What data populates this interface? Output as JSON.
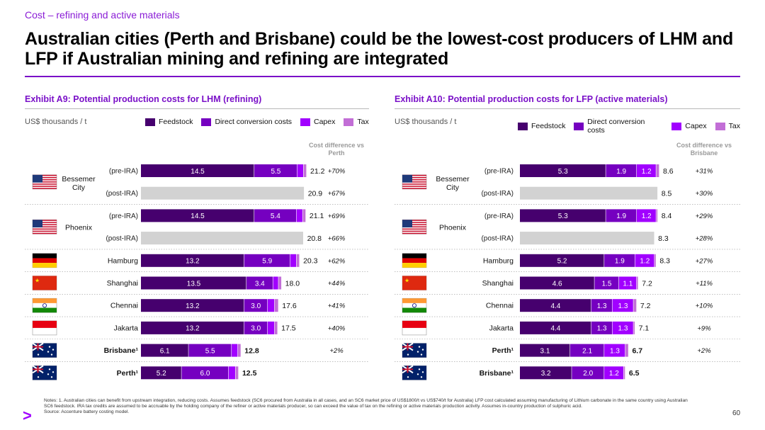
{
  "kicker": "Cost – refining and active materials",
  "title": "Australian cities (Perth and Brisbane) could be the lowest-cost producers of LHM and LFP if Australian mining and refining are integrated",
  "colors": {
    "feedstock": "#46006e",
    "direct_conversion": "#7500c0",
    "capex": "#a100ff",
    "tax": "#c26ed6",
    "post_ira": "#d2d2d2",
    "accent": "#7a10c8"
  },
  "notes": "Notes: 1. Australian cities can benefit from upstream integration, reducing costs. Assumes feedstock (SC6 procured from Australia in all cases, and an SC6 market price of US$1800/t vs US$740/t for Australia) LFP cost calculated assuming manufacturing of Lithium carbonate in the same country using Australian SC6 feedstock. IRA tax credits are assumed to be accruable by the holding company of the refiner or active materials producer, so can exceed the value of tax on the refining or active materials production activity. Assumes in-country production of sulphuric acid.",
  "source": "Source: Accenture battery costing model.",
  "page_number": "60",
  "chart_data": [
    {
      "type": "bar",
      "stacked": true,
      "orientation": "horizontal",
      "title": "Exhibit A9: Potential production costs for LHM (refining)",
      "units": "US$ thousands / t",
      "diff_header": "Cost difference vs Perth",
      "legend": [
        "Feedstock",
        "Direct conversion costs",
        "Capex",
        "Tax"
      ],
      "xmax": 21.2,
      "rows": [
        {
          "city": "Bessemer City",
          "flag": "usa",
          "sub": "(pre-IRA)",
          "segments": [
            14.5,
            5.5,
            0.8,
            0.4
          ],
          "labels": [
            "14.5",
            "5.5",
            "",
            ""
          ],
          "total": "21.2",
          "diff": "+70%"
        },
        {
          "city": "",
          "flag": "",
          "sub": "(post-IRA)",
          "segments": [
            20.9
          ],
          "labels": [
            ""
          ],
          "total": "20.9",
          "diff": "+67%",
          "post_ira": true
        },
        {
          "city": "Phoenix",
          "flag": "usa",
          "sub": "(pre-IRA)",
          "segments": [
            14.5,
            5.4,
            0.8,
            0.4
          ],
          "labels": [
            "14.5",
            "5.4",
            "",
            ""
          ],
          "total": "21.1",
          "diff": "+69%"
        },
        {
          "city": "",
          "flag": "",
          "sub": "(post-IRA)",
          "segments": [
            20.8
          ],
          "labels": [
            ""
          ],
          "total": "20.8",
          "diff": "+66%",
          "post_ira": true
        },
        {
          "city": "Hamburg",
          "flag": "germany",
          "sub": "",
          "segments": [
            13.2,
            5.9,
            0.8,
            0.4
          ],
          "labels": [
            "13.2",
            "5.9",
            "",
            ""
          ],
          "total": "20.3",
          "diff": "+62%"
        },
        {
          "city": "Shanghai",
          "flag": "china",
          "sub": "",
          "segments": [
            13.5,
            3.4,
            0.7,
            0.4
          ],
          "labels": [
            "13.5",
            "3.4",
            "",
            ""
          ],
          "total": "18.0",
          "diff": "+44%"
        },
        {
          "city": "Chennai",
          "flag": "india",
          "sub": "",
          "segments": [
            13.2,
            3.0,
            0.9,
            0.5
          ],
          "labels": [
            "13.2",
            "3.0",
            "",
            ""
          ],
          "total": "17.6",
          "diff": "+41%"
        },
        {
          "city": "Jakarta",
          "flag": "indonesia",
          "sub": "",
          "segments": [
            13.2,
            3.0,
            0.9,
            0.4
          ],
          "labels": [
            "13.2",
            "3.0",
            "",
            ""
          ],
          "total": "17.5",
          "diff": "+40%"
        },
        {
          "city": "Brisbane¹",
          "flag": "australia",
          "sub": "",
          "segments": [
            6.1,
            5.5,
            0.8,
            0.4
          ],
          "labels": [
            "6.1",
            "5.5",
            "",
            ""
          ],
          "total": "12.8",
          "diff": "+2%",
          "bold": true
        },
        {
          "city": "Perth¹",
          "flag": "australia",
          "sub": "",
          "segments": [
            5.2,
            6.0,
            0.9,
            0.4
          ],
          "labels": [
            "5.2",
            "6.0",
            "",
            ""
          ],
          "total": "12.5",
          "diff": "",
          "bold": true
        }
      ]
    },
    {
      "type": "bar",
      "stacked": true,
      "orientation": "horizontal",
      "title": "Exhibit A10: Potential production costs for LFP (active materials)",
      "units": "US$ thousands / t",
      "diff_header": "Cost difference vs Brisbane",
      "legend": [
        "Feedstock",
        "Direct conversion costs",
        "Capex",
        "Tax"
      ],
      "xmax": 8.6,
      "rows": [
        {
          "city": "Bessemer City",
          "flag": "usa",
          "sub": "(pre-IRA)",
          "segments": [
            5.3,
            1.9,
            1.2,
            0.2
          ],
          "labels": [
            "5.3",
            "1.9",
            "1.2",
            ""
          ],
          "total": "8.6",
          "diff": "+31%"
        },
        {
          "city": "",
          "flag": "",
          "sub": "(post-IRA)",
          "segments": [
            8.5
          ],
          "labels": [
            ""
          ],
          "total": "8.5",
          "diff": "+30%",
          "post_ira": true
        },
        {
          "city": "Phoenix",
          "flag": "usa",
          "sub": "(pre-IRA)",
          "segments": [
            5.3,
            1.9,
            1.2,
            0.1
          ],
          "labels": [
            "5.3",
            "1.9",
            "1.2",
            ""
          ],
          "total": "8.4",
          "diff": "+29%"
        },
        {
          "city": "",
          "flag": "",
          "sub": "(post-IRA)",
          "segments": [
            8.3
          ],
          "labels": [
            ""
          ],
          "total": "8.3",
          "diff": "+28%",
          "post_ira": true
        },
        {
          "city": "Hamburg",
          "flag": "germany",
          "sub": "",
          "segments": [
            5.2,
            1.9,
            1.2,
            0.1
          ],
          "labels": [
            "5.2",
            "1.9",
            "1.2",
            ""
          ],
          "total": "8.3",
          "diff": "+27%"
        },
        {
          "city": "Shanghai",
          "flag": "china",
          "sub": "",
          "segments": [
            4.6,
            1.5,
            1.1,
            0.1
          ],
          "labels": [
            "4.6",
            "1.5",
            "1.1",
            ""
          ],
          "total": "7.2",
          "diff": "+11%"
        },
        {
          "city": "Chennai",
          "flag": "india",
          "sub": "",
          "segments": [
            4.4,
            1.3,
            1.3,
            0.2
          ],
          "labels": [
            "4.4",
            "1.3",
            "1.3",
            ""
          ],
          "total": "7.2",
          "diff": "+10%"
        },
        {
          "city": "Jakarta",
          "flag": "indonesia",
          "sub": "",
          "segments": [
            4.4,
            1.3,
            1.3,
            0.1
          ],
          "labels": [
            "4.4",
            "1.3",
            "1.3",
            ""
          ],
          "total": "7.1",
          "diff": "+9%"
        },
        {
          "city": "Perth¹",
          "flag": "australia",
          "sub": "",
          "segments": [
            3.1,
            2.1,
            1.3,
            0.2
          ],
          "labels": [
            "3.1",
            "2.1",
            "1.3",
            ""
          ],
          "total": "6.7",
          "diff": "+2%",
          "bold": true
        },
        {
          "city": "Brisbane¹",
          "flag": "australia",
          "sub": "",
          "segments": [
            3.2,
            2.0,
            1.2,
            0.1
          ],
          "labels": [
            "3.2",
            "2.0",
            "1.2",
            ""
          ],
          "total": "6.5",
          "diff": "",
          "bold": true
        }
      ]
    }
  ]
}
